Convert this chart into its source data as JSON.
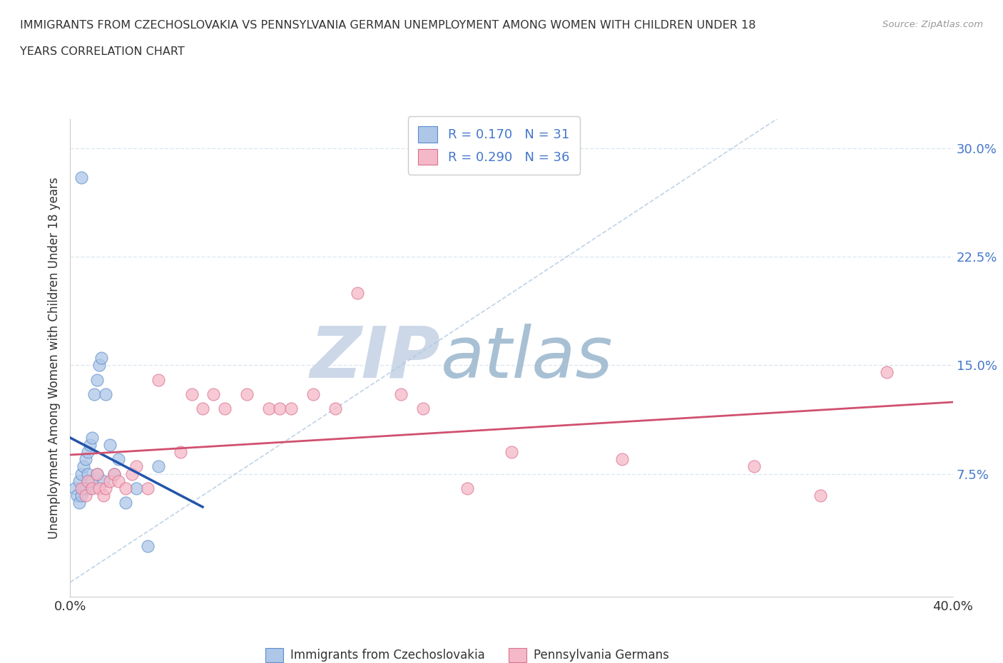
{
  "title_line1": "IMMIGRANTS FROM CZECHOSLOVAKIA VS PENNSYLVANIA GERMAN UNEMPLOYMENT AMONG WOMEN WITH CHILDREN UNDER 18",
  "title_line2": "YEARS CORRELATION CHART",
  "source": "Source: ZipAtlas.com",
  "ylabel": "Unemployment Among Women with Children Under 18 years",
  "xlim": [
    0.0,
    0.4
  ],
  "ylim": [
    -0.01,
    0.32
  ],
  "yticks": [
    0.0,
    0.075,
    0.15,
    0.225,
    0.3
  ],
  "ytick_labels": [
    "",
    "7.5%",
    "15.0%",
    "22.5%",
    "30.0%"
  ],
  "xticks": [
    0.0,
    0.1,
    0.2,
    0.3,
    0.4
  ],
  "xtick_labels": [
    "0.0%",
    "",
    "",
    "",
    "40.0%"
  ],
  "blue_R": 0.17,
  "blue_N": 31,
  "pink_R": 0.29,
  "pink_N": 36,
  "blue_color": "#aec6e8",
  "blue_edge_color": "#5b8fcc",
  "blue_line_color": "#2255aa",
  "pink_color": "#f5b8c8",
  "pink_edge_color": "#d97090",
  "pink_line_color": "#d05070",
  "diag_color": "#b0c8e0",
  "watermark_zip_color": "#d0dce8",
  "watermark_atlas_color": "#b0c8d8",
  "blue_x": [
    0.002,
    0.003,
    0.004,
    0.004,
    0.005,
    0.005,
    0.006,
    0.006,
    0.007,
    0.007,
    0.008,
    0.008,
    0.009,
    0.009,
    0.01,
    0.01,
    0.011,
    0.012,
    0.012,
    0.013,
    0.014,
    0.015,
    0.016,
    0.018,
    0.02,
    0.022,
    0.025,
    0.03,
    0.035,
    0.04,
    0.005
  ],
  "blue_y": [
    0.065,
    0.06,
    0.055,
    0.07,
    0.06,
    0.075,
    0.065,
    0.08,
    0.065,
    0.085,
    0.09,
    0.075,
    0.065,
    0.095,
    0.07,
    0.1,
    0.13,
    0.075,
    0.14,
    0.15,
    0.155,
    0.07,
    0.13,
    0.095,
    0.075,
    0.085,
    0.055,
    0.065,
    0.025,
    0.08,
    0.28
  ],
  "pink_x": [
    0.005,
    0.007,
    0.008,
    0.01,
    0.012,
    0.013,
    0.015,
    0.016,
    0.018,
    0.02,
    0.022,
    0.025,
    0.028,
    0.03,
    0.035,
    0.04,
    0.05,
    0.055,
    0.06,
    0.065,
    0.07,
    0.08,
    0.09,
    0.095,
    0.1,
    0.11,
    0.12,
    0.13,
    0.15,
    0.16,
    0.18,
    0.2,
    0.25,
    0.31,
    0.34,
    0.37
  ],
  "pink_y": [
    0.065,
    0.06,
    0.07,
    0.065,
    0.075,
    0.065,
    0.06,
    0.065,
    0.07,
    0.075,
    0.07,
    0.065,
    0.075,
    0.08,
    0.065,
    0.14,
    0.09,
    0.13,
    0.12,
    0.13,
    0.12,
    0.13,
    0.12,
    0.12,
    0.12,
    0.13,
    0.12,
    0.2,
    0.13,
    0.12,
    0.065,
    0.09,
    0.085,
    0.08,
    0.06,
    0.145
  ],
  "legend_label_blue": "Immigrants from Czechoslovakia",
  "legend_label_pink": "Pennsylvania Germans",
  "grid_color": "#dde8f0",
  "background_color": "#ffffff"
}
